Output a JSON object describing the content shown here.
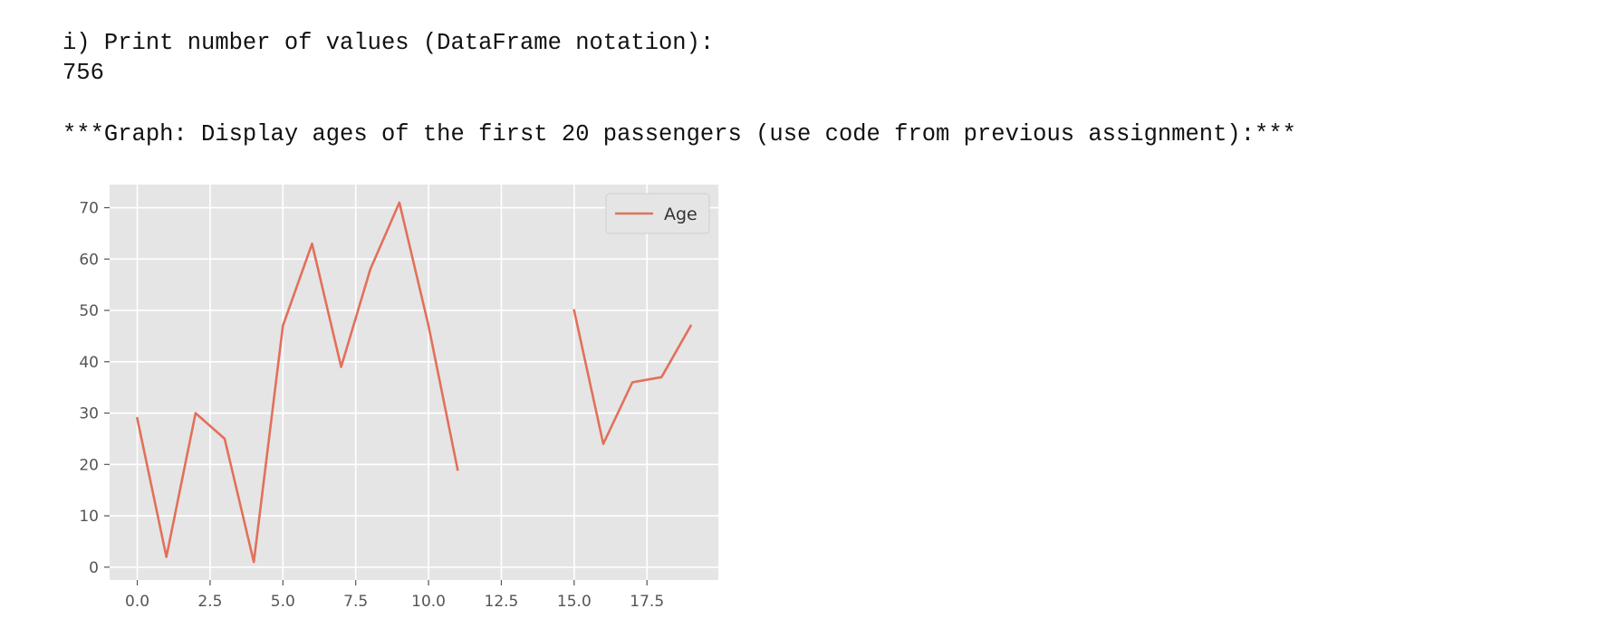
{
  "output": {
    "line1": "i) Print number of values (DataFrame notation):",
    "line2": "756",
    "line3": "***Graph: Display ages of the first 20 passengers (use code from previous assignment):***"
  },
  "colors": {
    "plot_bg": "#e5e5e5",
    "grid": "#ffffff",
    "series": "#e2705a"
  },
  "chart_data": {
    "type": "line",
    "title": "",
    "xlabel": "",
    "ylabel": "",
    "xlim": [
      -0.95,
      19.95
    ],
    "ylim": [
      -2.5,
      74.5
    ],
    "xticks": [
      0.0,
      2.5,
      5.0,
      7.5,
      10.0,
      12.5,
      15.0,
      17.5
    ],
    "xtick_labels": [
      "0.0",
      "2.5",
      "5.0",
      "7.5",
      "10.0",
      "12.5",
      "15.0",
      "17.5"
    ],
    "yticks": [
      0,
      10,
      20,
      30,
      40,
      50,
      60,
      70
    ],
    "ytick_labels": [
      "0",
      "10",
      "20",
      "30",
      "40",
      "50",
      "60",
      "70"
    ],
    "grid": true,
    "legend": {
      "position": "top-right"
    },
    "series": [
      {
        "name": "Age",
        "x": [
          0,
          1,
          2,
          3,
          4,
          5,
          6,
          7,
          8,
          9,
          10,
          11,
          12,
          13,
          14,
          15,
          16,
          17,
          18,
          19
        ],
        "y": [
          29,
          2,
          30,
          25,
          1,
          47,
          63,
          39,
          58,
          71,
          47,
          19,
          null,
          null,
          null,
          50,
          24,
          36,
          37,
          47
        ]
      }
    ]
  }
}
